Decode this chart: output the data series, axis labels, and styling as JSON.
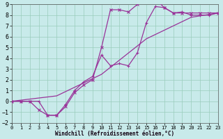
{
  "xlabel": "Windchill (Refroidissement éolien,°C)",
  "background_color": "#c8eaea",
  "grid_color": "#99ccbb",
  "line_color": "#993399",
  "xlim": [
    0,
    23
  ],
  "ylim": [
    -2,
    9
  ],
  "xticks": [
    0,
    1,
    2,
    3,
    4,
    5,
    6,
    7,
    8,
    9,
    10,
    11,
    12,
    13,
    14,
    15,
    16,
    17,
    18,
    19,
    20,
    21,
    22,
    23
  ],
  "yticks": [
    -2,
    -1,
    0,
    1,
    2,
    3,
    4,
    5,
    6,
    7,
    8,
    9
  ],
  "curve1_x": [
    0,
    1,
    2,
    3,
    4,
    5,
    6,
    7,
    8,
    9,
    10,
    11,
    12,
    13,
    14,
    15,
    16,
    17,
    18,
    19,
    20,
    21,
    22,
    23
  ],
  "curve1_y": [
    0,
    0,
    0,
    -0.8,
    -1.3,
    -1.3,
    -0.5,
    0.8,
    1.5,
    2.0,
    5.0,
    8.5,
    8.5,
    8.3,
    9.0,
    9.3,
    9.5,
    8.7,
    8.2,
    8.2,
    8.2,
    8.2,
    8.2,
    8.2
  ],
  "curve2_x": [
    0,
    1,
    2,
    3,
    4,
    5,
    6,
    7,
    8,
    9,
    10,
    11,
    12,
    13,
    14,
    15,
    16,
    17,
    18,
    19,
    20,
    21,
    22,
    23
  ],
  "curve2_y": [
    0,
    0,
    0,
    0,
    -1.3,
    -1.3,
    -0.3,
    1.0,
    1.8,
    2.3,
    4.3,
    3.3,
    3.5,
    3.3,
    4.5,
    7.3,
    8.8,
    8.7,
    8.2,
    8.3,
    8.0,
    8.0,
    8.0,
    8.2
  ],
  "curve3_x": [
    0,
    5,
    10,
    15,
    20,
    23
  ],
  "curve3_y": [
    0,
    0.5,
    2.5,
    5.8,
    7.8,
    8.2
  ],
  "tick_fontsize_x": 5,
  "tick_fontsize_y": 6,
  "xlabel_fontsize": 5.5,
  "linewidth": 0.9,
  "marker_size": 3
}
